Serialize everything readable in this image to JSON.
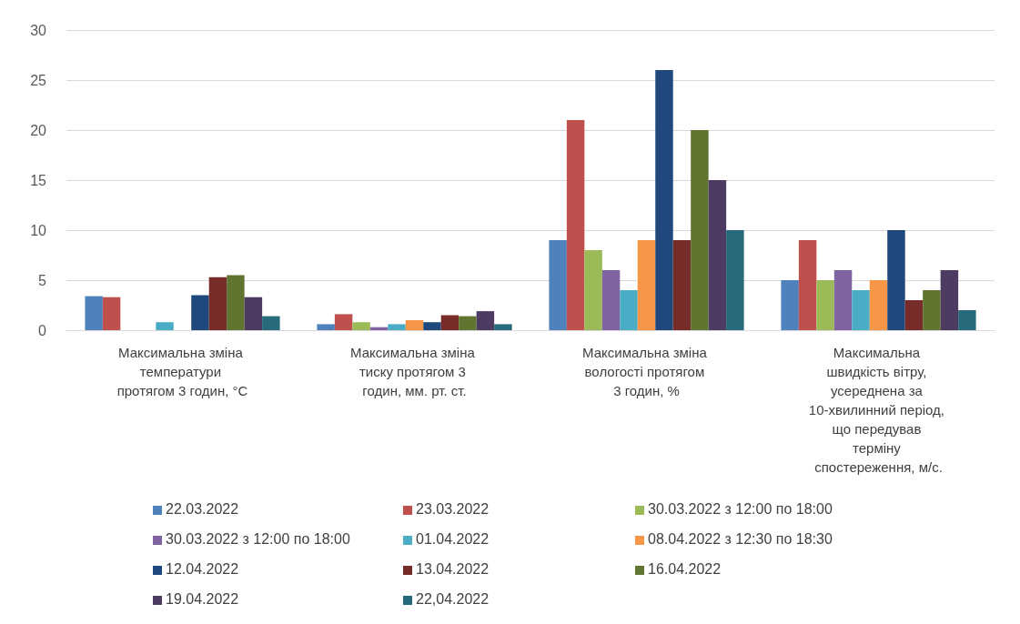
{
  "chart_data": {
    "type": "bar",
    "categories": [
      "Максимальна зміна температури протягом 3 годин, °С",
      "Максимальна зміна тиску протягом 3 годин, мм. рт. ст.",
      "Максимальна зміна вологості протягом 3 годин, %",
      "Максимальна швидкість вітру, усереднена за 10-хвилинний період, що передував терміну спостереження, м/с."
    ],
    "series": [
      {
        "name": "22.03.2022",
        "color": "#4f81bd",
        "values": [
          3.4,
          0.6,
          9,
          5
        ]
      },
      {
        "name": "23.03.2022",
        "color": "#c0504d",
        "values": [
          3.3,
          1.6,
          21,
          9
        ]
      },
      {
        "name": "30.03.2022 з 12:00 по 18:00",
        "color": "#9bbb59",
        "values": [
          null,
          0.8,
          8,
          5
        ]
      },
      {
        "name": "30.03.2022 з 12:00 по 18:00",
        "color": "#8064a2",
        "values": [
          null,
          0.3,
          6,
          6
        ]
      },
      {
        "name": "01.04.2022",
        "color": "#4bacc6",
        "values": [
          0.8,
          0.6,
          4,
          4
        ]
      },
      {
        "name": "08.04.2022 з 12:30 по 18:30",
        "color": "#f79646",
        "values": [
          null,
          1.0,
          9,
          5
        ]
      },
      {
        "name": "12.04.2022",
        "color": "#1f497d",
        "values": [
          3.5,
          0.8,
          26,
          10
        ]
      },
      {
        "name": "13.04.2022",
        "color": "#772c2a",
        "values": [
          5.3,
          1.5,
          9,
          3
        ]
      },
      {
        "name": "16.04.2022",
        "color": "#5f7530",
        "values": [
          5.5,
          1.4,
          20,
          4
        ]
      },
      {
        "name": "19.04.2022",
        "color": "#4d3b62",
        "values": [
          3.3,
          1.9,
          15,
          6
        ]
      },
      {
        "name": "22,04.2022",
        "color": "#276a7c",
        "values": [
          1.4,
          0.6,
          10,
          2
        ]
      }
    ],
    "ylim": [
      0,
      30
    ],
    "yticks": [
      0,
      5,
      10,
      15,
      20,
      25,
      30
    ],
    "grid": "y",
    "legend": "bottom"
  }
}
